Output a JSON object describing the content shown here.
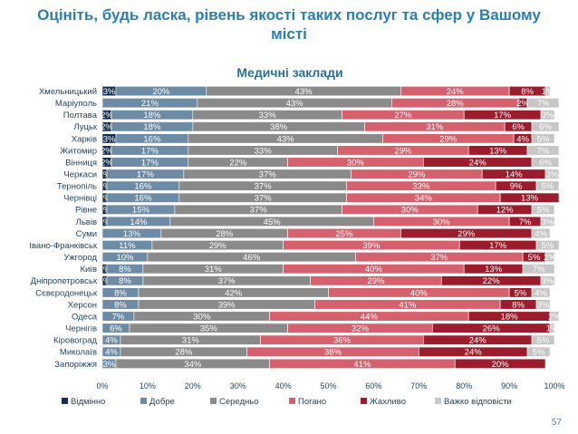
{
  "page": {
    "title": "Оцініть, будь ласка, рівень якості таких послуг та сфер у Вашому місті",
    "page_number": "57"
  },
  "chart_data": {
    "type": "bar",
    "orientation": "horizontal",
    "stacked": true,
    "title": "Медичні заклади",
    "xlim": [
      0,
      100
    ],
    "xticks": [
      "0%",
      "10%",
      "20%",
      "30%",
      "40%",
      "50%",
      "60%",
      "70%",
      "80%",
      "90%",
      "100%"
    ],
    "legend_position": "bottom",
    "categories": [
      "Хмельницький",
      "Маріуполь",
      "Полтава",
      "Луцьк",
      "Харків",
      "Житомир",
      "Вінниця",
      "Черкаси",
      "Тернопіль",
      "Чернівці",
      "Рівне",
      "Львів",
      "Суми",
      "Івано-Франківськ",
      "Ужгород",
      "Київ",
      "Дніпропетровськ",
      "Сєвєродонецьк",
      "Херсон",
      "Одеса",
      "Чернігів",
      "Кіровоград",
      "Миколаїв",
      "Запоріжжя"
    ],
    "series": [
      {
        "name": "Відмінно",
        "color": "#16304b",
        "label_color": "#ffffff",
        "values": [
          3,
          0,
          2,
          2,
          3,
          2,
          2,
          1,
          1,
          1,
          1,
          1,
          0,
          0,
          0,
          1,
          1,
          0,
          0,
          0,
          0,
          0,
          0,
          0
        ]
      },
      {
        "name": "Добре",
        "color": "#6d8ba4",
        "label_color": "#ffffff",
        "values": [
          20,
          21,
          18,
          18,
          16,
          17,
          17,
          17,
          16,
          16,
          15,
          14,
          13,
          11,
          10,
          8,
          8,
          8,
          8,
          7,
          6,
          4,
          4,
          3
        ]
      },
      {
        "name": "Середньо",
        "color": "#8a8a8a",
        "label_color": "#ffffff",
        "values": [
          43,
          43,
          33,
          38,
          43,
          33,
          22,
          37,
          37,
          37,
          37,
          45,
          28,
          29,
          46,
          31,
          37,
          42,
          39,
          30,
          35,
          31,
          28,
          34
        ]
      },
      {
        "name": "Погано",
        "color": "#d6616e",
        "label_color": "#ffffff",
        "values": [
          24,
          28,
          27,
          31,
          29,
          29,
          30,
          29,
          33,
          34,
          30,
          30,
          25,
          39,
          37,
          40,
          29,
          40,
          41,
          44,
          32,
          36,
          38,
          41
        ]
      },
      {
        "name": "Жахливо",
        "color": "#9b1c2c",
        "label_color": "#ffffff",
        "values": [
          8,
          2,
          17,
          6,
          4,
          13,
          24,
          14,
          9,
          13,
          12,
          7,
          29,
          17,
          5,
          13,
          22,
          5,
          8,
          18,
          26,
          24,
          24,
          20
        ]
      },
      {
        "name": "Важко відповісти",
        "color": "#c6c6c6",
        "label_color": "#ffffff",
        "values": [
          1,
          7,
          3,
          6,
          5,
          7,
          6,
          3,
          5,
          0,
          5,
          3,
          4,
          5,
          2,
          7,
          3,
          4,
          3,
          2,
          1,
          5,
          5,
          0
        ]
      }
    ]
  }
}
